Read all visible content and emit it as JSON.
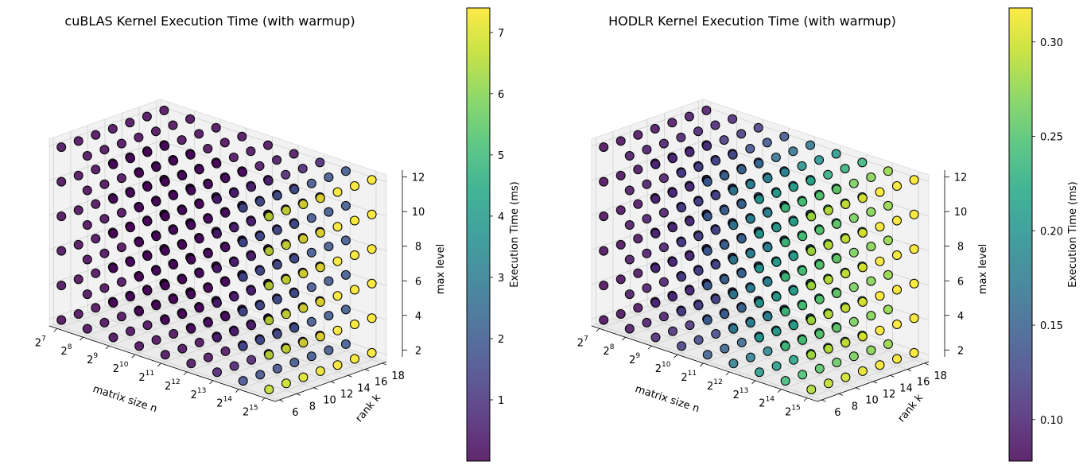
{
  "chart_data": [
    {
      "type": "scatter3d",
      "title": "cuBLAS Kernel Execution Time (with warmup)",
      "xlabel": "matrix size n",
      "ylabel": "rank k",
      "zlabel": "max level",
      "colorbar_label": "Execution Time (ms)",
      "colormap": "viridis",
      "x_log2_values": [
        7,
        8,
        9,
        10,
        11,
        12,
        13,
        14,
        15
      ],
      "y_values": [
        6,
        8,
        10,
        12,
        14,
        16,
        18
      ],
      "z_values": [
        2,
        4,
        6,
        8,
        10,
        12
      ],
      "z_ticks": [
        2,
        4,
        6,
        8,
        10,
        12
      ],
      "y_ticks": [
        6,
        8,
        10,
        12,
        14,
        16,
        18
      ],
      "x_tick_exponents": [
        7,
        8,
        9,
        10,
        11,
        12,
        13,
        14,
        15
      ],
      "color_range": [
        0.0,
        7.4
      ],
      "colorbar_ticks": [
        1,
        2,
        3,
        4,
        5,
        6,
        7
      ],
      "value_by_x_log2": {
        "7": 0.03,
        "8": 0.03,
        "9": 0.04,
        "10": 0.05,
        "11": 0.08,
        "12": 0.2,
        "13": 0.6,
        "14": 1.8,
        "15": 7.2
      },
      "grid": true
    },
    {
      "type": "scatter3d",
      "title": "HODLR Kernel Execution Time (with warmup)",
      "xlabel": "matrix size n",
      "ylabel": "rank k",
      "zlabel": "max level",
      "colorbar_label": "Execution Time (ms)",
      "colormap": "viridis",
      "x_log2_values": [
        7,
        8,
        9,
        10,
        11,
        12,
        13,
        14,
        15
      ],
      "y_values": [
        6,
        8,
        10,
        12,
        14,
        16,
        18
      ],
      "z_values": [
        2,
        4,
        6,
        8,
        10,
        12
      ],
      "z_ticks": [
        2,
        4,
        6,
        8,
        10,
        12
      ],
      "y_ticks": [
        6,
        8,
        10,
        12,
        14,
        16,
        18
      ],
      "x_tick_exponents": [
        7,
        8,
        9,
        10,
        11,
        12,
        13,
        14,
        15
      ],
      "color_range": [
        0.078,
        0.318
      ],
      "colorbar_ticks": [
        0.1,
        0.15,
        0.2,
        0.25,
        0.3
      ],
      "colorbar_tick_labels": [
        "0.10",
        "0.15",
        "0.20",
        "0.25",
        "0.30"
      ],
      "value_by_x_log2": {
        "7": 0.085,
        "8": 0.095,
        "9": 0.11,
        "10": 0.13,
        "11": 0.16,
        "12": 0.19,
        "13": 0.22,
        "14": 0.26,
        "15": 0.31
      },
      "grid": true
    }
  ]
}
